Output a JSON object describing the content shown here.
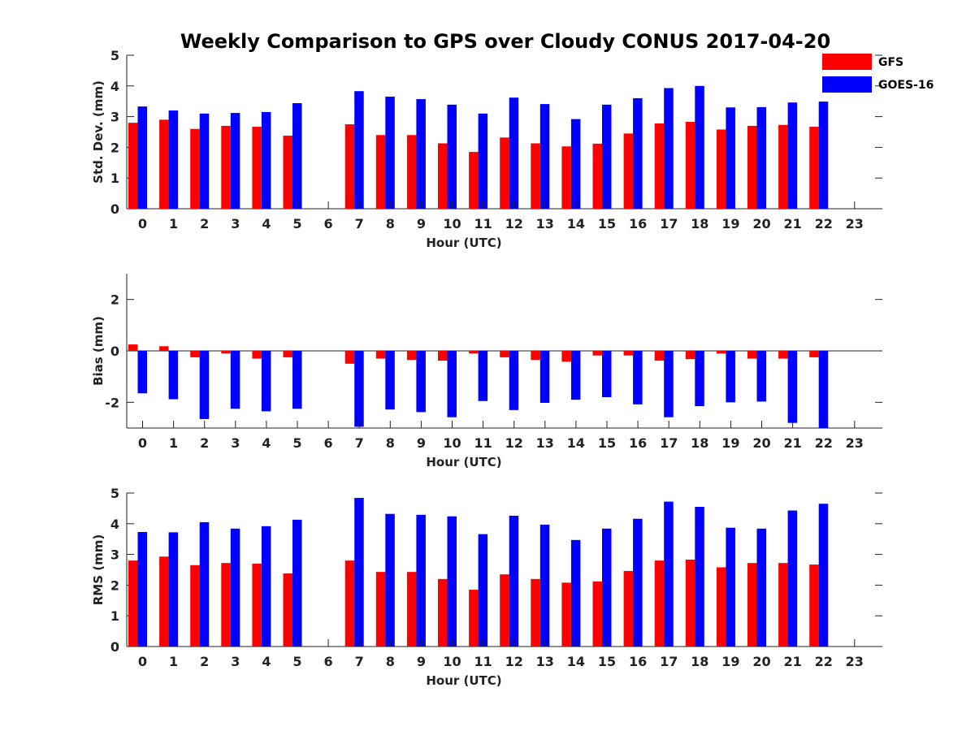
{
  "figure": {
    "title": "Weekly Comparison to GPS over Cloudy CONUS 2017-04-20"
  },
  "legend": {
    "placement": "top-right",
    "entries": [
      {
        "label": "GFS",
        "color": "#ff0000"
      },
      {
        "label": "GOES-16",
        "color": "#0000ff"
      }
    ]
  },
  "chart_data": [
    {
      "type": "bar",
      "xlabel": "Hour (UTC)",
      "ylabel": "Std. Dev. (mm)",
      "ylim": [
        0,
        5
      ],
      "yticks": [
        0,
        1,
        2,
        3,
        4,
        5
      ],
      "categories": [
        "0",
        "1",
        "2",
        "3",
        "4",
        "5",
        "6",
        "7",
        "8",
        "9",
        "10",
        "11",
        "12",
        "13",
        "14",
        "15",
        "16",
        "17",
        "18",
        "19",
        "20",
        "21",
        "22",
        "23"
      ],
      "series": [
        {
          "name": "GFS",
          "color": "#ff0000",
          "values": [
            2.8,
            2.9,
            2.6,
            2.7,
            2.67,
            2.38,
            null,
            2.75,
            2.4,
            2.4,
            2.13,
            1.85,
            2.32,
            2.13,
            2.03,
            2.12,
            2.45,
            2.78,
            2.83,
            2.58,
            2.7,
            2.73,
            2.67,
            null
          ]
        },
        {
          "name": "GOES-16",
          "color": "#0000ff",
          "values": [
            3.33,
            3.2,
            3.1,
            3.12,
            3.15,
            3.44,
            null,
            3.83,
            3.65,
            3.57,
            3.39,
            3.1,
            3.62,
            3.41,
            2.92,
            3.39,
            3.6,
            3.93,
            4.0,
            3.3,
            3.31,
            3.46,
            3.49,
            null
          ]
        }
      ]
    },
    {
      "type": "bar",
      "xlabel": "Hour (UTC)",
      "ylabel": "Bias (mm)",
      "ylim": [
        -3,
        3
      ],
      "yticks": [
        -2,
        0,
        2
      ],
      "zero_line": true,
      "categories": [
        "0",
        "1",
        "2",
        "3",
        "4",
        "5",
        "6",
        "7",
        "8",
        "9",
        "10",
        "11",
        "12",
        "13",
        "14",
        "15",
        "16",
        "17",
        "18",
        "19",
        "20",
        "21",
        "22",
        "23"
      ],
      "series": [
        {
          "name": "GFS",
          "color": "#ff0000",
          "values": [
            0.25,
            0.18,
            -0.25,
            -0.1,
            -0.3,
            -0.25,
            null,
            -0.5,
            -0.3,
            -0.35,
            -0.38,
            -0.1,
            -0.25,
            -0.35,
            -0.42,
            -0.18,
            -0.18,
            -0.38,
            -0.32,
            -0.1,
            -0.3,
            -0.3,
            -0.25,
            null
          ]
        },
        {
          "name": "GOES-16",
          "color": "#0000ff",
          "values": [
            -1.65,
            -1.88,
            -2.65,
            -2.25,
            -2.35,
            -2.25,
            null,
            -2.95,
            -2.28,
            -2.38,
            -2.58,
            -1.95,
            -2.3,
            -2.02,
            -1.9,
            -1.8,
            -2.08,
            -2.58,
            -2.15,
            -2.0,
            -1.97,
            -2.8,
            -3.0,
            null
          ]
        }
      ]
    },
    {
      "type": "bar",
      "xlabel": "Hour (UTC)",
      "ylabel": "RMS (mm)",
      "ylim": [
        0,
        5
      ],
      "yticks": [
        0,
        1,
        2,
        3,
        4,
        5
      ],
      "categories": [
        "0",
        "1",
        "2",
        "3",
        "4",
        "5",
        "6",
        "7",
        "8",
        "9",
        "10",
        "11",
        "12",
        "13",
        "14",
        "15",
        "16",
        "17",
        "18",
        "19",
        "20",
        "21",
        "22",
        "23"
      ],
      "series": [
        {
          "name": "GFS",
          "color": "#ff0000",
          "values": [
            2.8,
            2.93,
            2.65,
            2.72,
            2.7,
            2.38,
            null,
            2.8,
            2.43,
            2.43,
            2.2,
            1.85,
            2.35,
            2.2,
            2.08,
            2.12,
            2.46,
            2.8,
            2.83,
            2.58,
            2.72,
            2.72,
            2.67,
            null
          ]
        },
        {
          "name": "GOES-16",
          "color": "#0000ff",
          "values": [
            3.73,
            3.72,
            4.05,
            3.84,
            3.92,
            4.13,
            null,
            4.84,
            4.32,
            4.29,
            4.24,
            3.66,
            4.26,
            3.97,
            3.47,
            3.84,
            4.16,
            4.72,
            4.55,
            3.87,
            3.84,
            4.43,
            4.65,
            null
          ]
        }
      ]
    }
  ]
}
